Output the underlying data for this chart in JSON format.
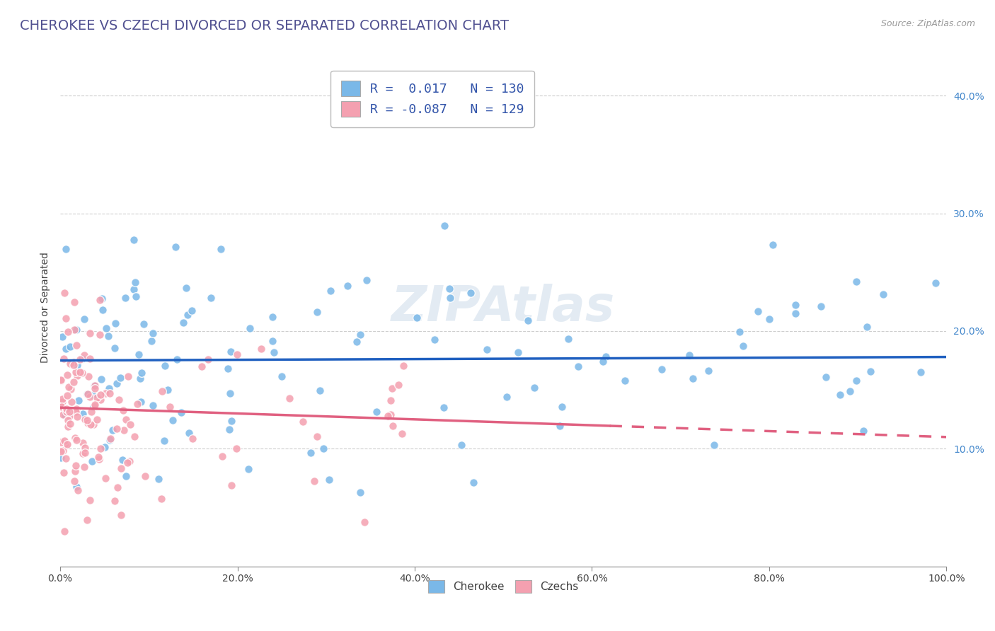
{
  "title": "CHEROKEE VS CZECH DIVORCED OR SEPARATED CORRELATION CHART",
  "source_text": "Source: ZipAtlas.com",
  "ylabel": "Divorced or Separated",
  "x_min": 0.0,
  "x_max": 1.0,
  "y_min": 0.0,
  "y_max": 0.44,
  "x_ticks": [
    0.0,
    0.2,
    0.4,
    0.6,
    0.8,
    1.0
  ],
  "x_tick_labels": [
    "0.0%",
    "20.0%",
    "40.0%",
    "60.0%",
    "80.0%",
    "100.0%"
  ],
  "y_ticks": [
    0.1,
    0.2,
    0.3,
    0.4
  ],
  "y_tick_labels": [
    "10.0%",
    "20.0%",
    "30.0%",
    "40.0%"
  ],
  "cherokee_color": "#7ab8e8",
  "czechs_color": "#f4a0b0",
  "trend_blue": "#2060c0",
  "trend_pink": "#e06080",
  "watermark": "ZIPAtlas",
  "legend_blue_label": "R =  0.017   N = 130",
  "legend_pink_label": "R = -0.087   N = 129",
  "cherokee_label": "Cherokee",
  "czechs_label": "Czechs",
  "cherokee_R": 0.017,
  "czechs_R": -0.087,
  "cherokee_N": 130,
  "czechs_N": 129,
  "background_color": "#ffffff",
  "grid_color": "#c8c8c8",
  "title_color": "#505090",
  "title_fontsize": 14,
  "axis_label_fontsize": 10,
  "tick_fontsize": 10,
  "cherokee_trend_intercept": 0.175,
  "cherokee_trend_slope": 0.003,
  "czechs_trend_intercept": 0.135,
  "czechs_trend_slope": -0.025
}
